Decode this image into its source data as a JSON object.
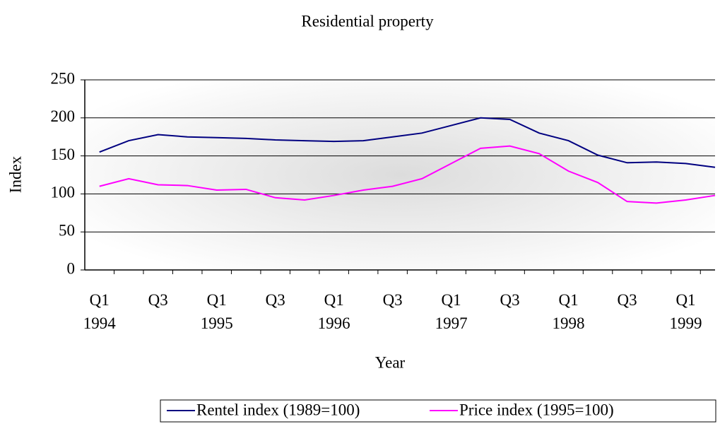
{
  "chart_data": {
    "type": "line",
    "title": "Residential property",
    "x_label": "Year",
    "y_label": "Index",
    "categories": [
      "Q1\n1994",
      null,
      "Q3",
      null,
      "Q1\n1995",
      null,
      "Q3",
      null,
      "Q1\n1996",
      null,
      "Q3",
      null,
      "Q1\n1997",
      null,
      "Q3",
      null,
      "Q1\n1998",
      null,
      "Q3",
      null,
      "Q1\n1999",
      null
    ],
    "series": [
      {
        "name": "Rentel index (1989=100)",
        "color": "#000080",
        "values": [
          155,
          170,
          178,
          175,
          174,
          173,
          171,
          170,
          169,
          170,
          175,
          180,
          190,
          200,
          198,
          180,
          170,
          151,
          141,
          142,
          140,
          135
        ]
      },
      {
        "name": "Price index (1995=100)",
        "color": "#ff00ff",
        "values": [
          110,
          120,
          112,
          111,
          105,
          106,
          95,
          92,
          98,
          105,
          110,
          120,
          140,
          160,
          163,
          153,
          130,
          115,
          90,
          88,
          92,
          98
        ]
      }
    ],
    "ylim": [
      0,
      250
    ],
    "yticks": [
      0,
      50,
      100,
      150,
      200,
      250
    ],
    "grid": true,
    "legend": "bottom"
  }
}
